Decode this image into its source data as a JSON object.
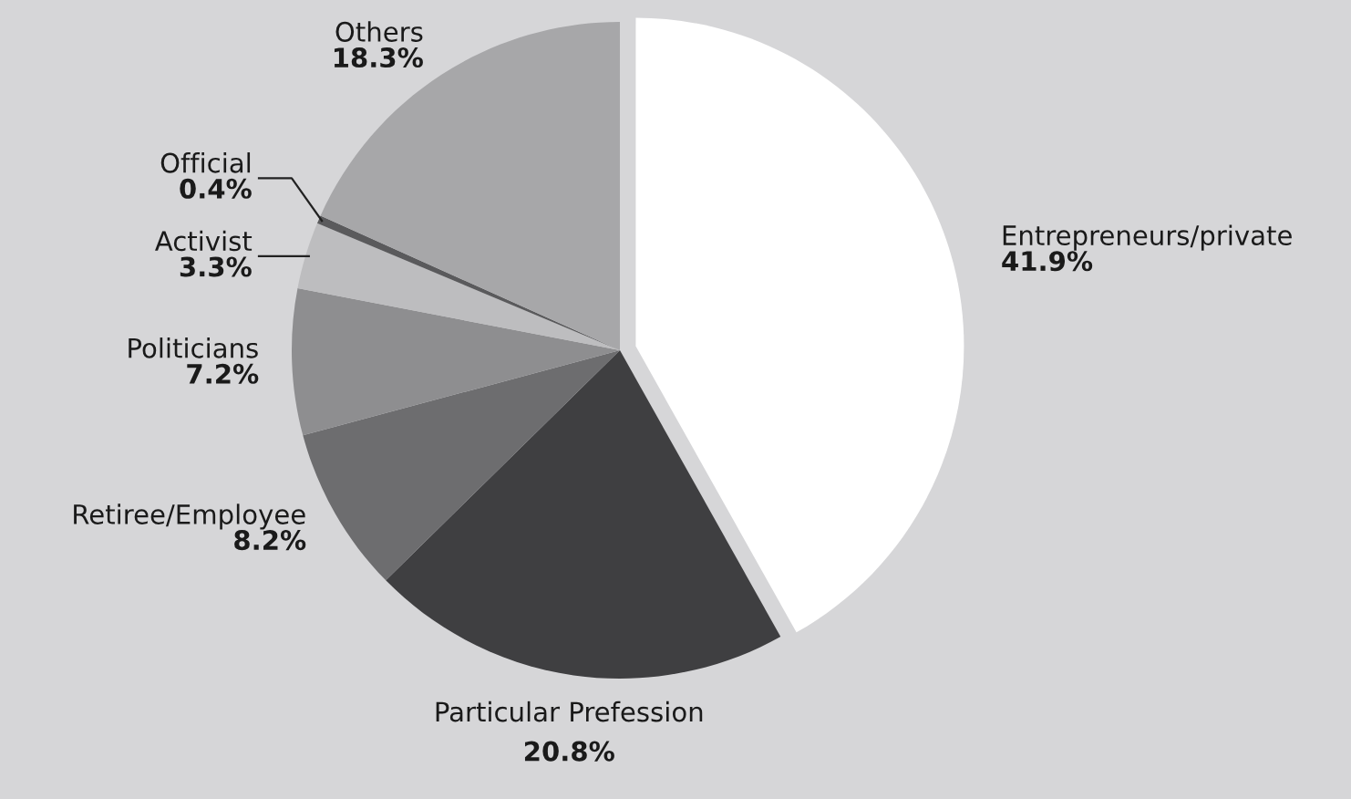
{
  "chart_data": {
    "type": "pie",
    "categories": [
      "Entrepreneurs/private",
      "Particular Prefession",
      "Retiree/Employee",
      "Politicians",
      "Activist",
      "Official",
      "Others"
    ],
    "values": [
      41.9,
      20.8,
      8.2,
      7.2,
      3.3,
      0.4,
      18.3
    ],
    "colors": [
      "#ffffff",
      "#3f3f41",
      "#6d6d6f",
      "#8e8e90",
      "#bdbdbf",
      "#5a5a5c",
      "#a7a7a9"
    ],
    "value_labels": [
      "41.9%",
      "20.8%",
      "8.2%",
      "7.2%",
      "3.3%",
      "0.4%",
      "18.3%"
    ]
  }
}
